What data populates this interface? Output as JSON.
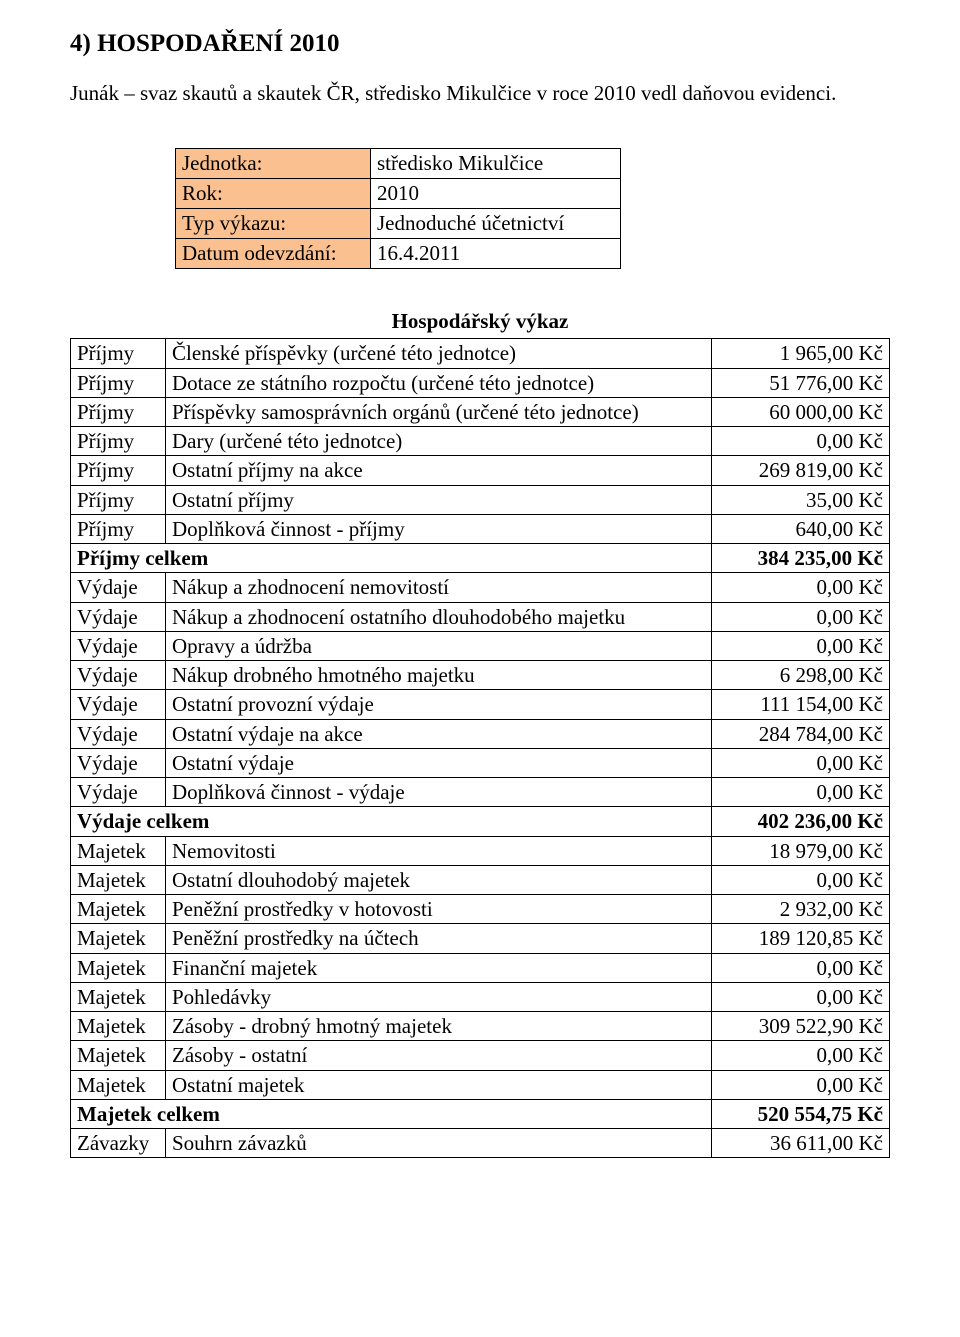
{
  "section_title": "4) HOSPODAŘENÍ 2010",
  "intro": "Junák – svaz skautů a skautek ČR, středisko Mikulčice v roce 2010 vedl daňovou evidenci.",
  "info_table": {
    "row1_label": "Jednotka:",
    "row1_value": "středisko Mikulčice",
    "row2_label": "Rok:",
    "row2_value": "2010",
    "row3_label": "Typ výkazu:",
    "row3_value": "Jednoduché účetnictví",
    "row4_label": "Datum odevzdání:",
    "row4_value": "16.4.2011"
  },
  "output_title": "Hospodářský výkaz",
  "rows": [
    {
      "cat": "Příjmy",
      "desc": "Členské příspěvky (určené této jednotce)",
      "val": "1 965,00 Kč",
      "total": false
    },
    {
      "cat": "Příjmy",
      "desc": "Dotace ze státního rozpočtu (určené této jednotce)",
      "val": "51 776,00 Kč",
      "total": false
    },
    {
      "cat": "Příjmy",
      "desc": "Příspěvky samosprávních orgánů (určené této jednotce)",
      "val": "60 000,00 Kč",
      "total": false
    },
    {
      "cat": "Příjmy",
      "desc": "Dary (určené této jednotce)",
      "val": "0,00 Kč",
      "total": false
    },
    {
      "cat": "Příjmy",
      "desc": "Ostatní příjmy na akce",
      "val": "269 819,00 Kč",
      "total": false
    },
    {
      "cat": "Příjmy",
      "desc": "Ostatní příjmy",
      "val": "35,00 Kč",
      "total": false
    },
    {
      "cat": "Příjmy",
      "desc": "Doplňková činnost - příjmy",
      "val": "640,00 Kč",
      "total": false
    },
    {
      "cat": "",
      "desc": "Příjmy celkem",
      "val": "384 235,00 Kč",
      "total": true
    },
    {
      "cat": "Výdaje",
      "desc": "Nákup a zhodnocení nemovitostí",
      "val": "0,00 Kč",
      "total": false
    },
    {
      "cat": "Výdaje",
      "desc": "Nákup a zhodnocení ostatního dlouhodobého majetku",
      "val": "0,00 Kč",
      "total": false
    },
    {
      "cat": "Výdaje",
      "desc": "Opravy a údržba",
      "val": "0,00 Kč",
      "total": false
    },
    {
      "cat": "Výdaje",
      "desc": "Nákup drobného hmotného majetku",
      "val": "6 298,00 Kč",
      "total": false
    },
    {
      "cat": "Výdaje",
      "desc": "Ostatní provozní výdaje",
      "val": "111 154,00 Kč",
      "total": false
    },
    {
      "cat": "Výdaje",
      "desc": "Ostatní výdaje na akce",
      "val": "284 784,00 Kč",
      "total": false
    },
    {
      "cat": "Výdaje",
      "desc": "Ostatní výdaje",
      "val": "0,00 Kč",
      "total": false
    },
    {
      "cat": "Výdaje",
      "desc": "Doplňková činnost - výdaje",
      "val": "0,00 Kč",
      "total": false
    },
    {
      "cat": "",
      "desc": "Výdaje celkem",
      "val": "402 236,00 Kč",
      "total": true
    },
    {
      "cat": "Majetek",
      "desc": "Nemovitosti",
      "val": "18 979,00 Kč",
      "total": false
    },
    {
      "cat": "Majetek",
      "desc": "Ostatní dlouhodobý majetek",
      "val": "0,00 Kč",
      "total": false
    },
    {
      "cat": "Majetek",
      "desc": "Peněžní prostředky v hotovosti",
      "val": "2 932,00 Kč",
      "total": false
    },
    {
      "cat": "Majetek",
      "desc": "Peněžní prostředky na účtech",
      "val": "189 120,85 Kč",
      "total": false
    },
    {
      "cat": "Majetek",
      "desc": "Finanční majetek",
      "val": "0,00 Kč",
      "total": false
    },
    {
      "cat": "Majetek",
      "desc": "Pohledávky",
      "val": "0,00 Kč",
      "total": false
    },
    {
      "cat": "Majetek",
      "desc": "Zásoby - drobný hmotný majetek",
      "val": "309 522,90 Kč",
      "total": false
    },
    {
      "cat": "Majetek",
      "desc": "Zásoby - ostatní",
      "val": "0,00 Kč",
      "total": false
    },
    {
      "cat": "Majetek",
      "desc": "Ostatní majetek",
      "val": "0,00 Kč",
      "total": false
    },
    {
      "cat": "",
      "desc": "Majetek celkem",
      "val": "520 554,75 Kč",
      "total": true
    },
    {
      "cat": "Závazky",
      "desc": "Souhrn závazků",
      "val": "36 611,00 Kč",
      "total": false
    }
  ]
}
